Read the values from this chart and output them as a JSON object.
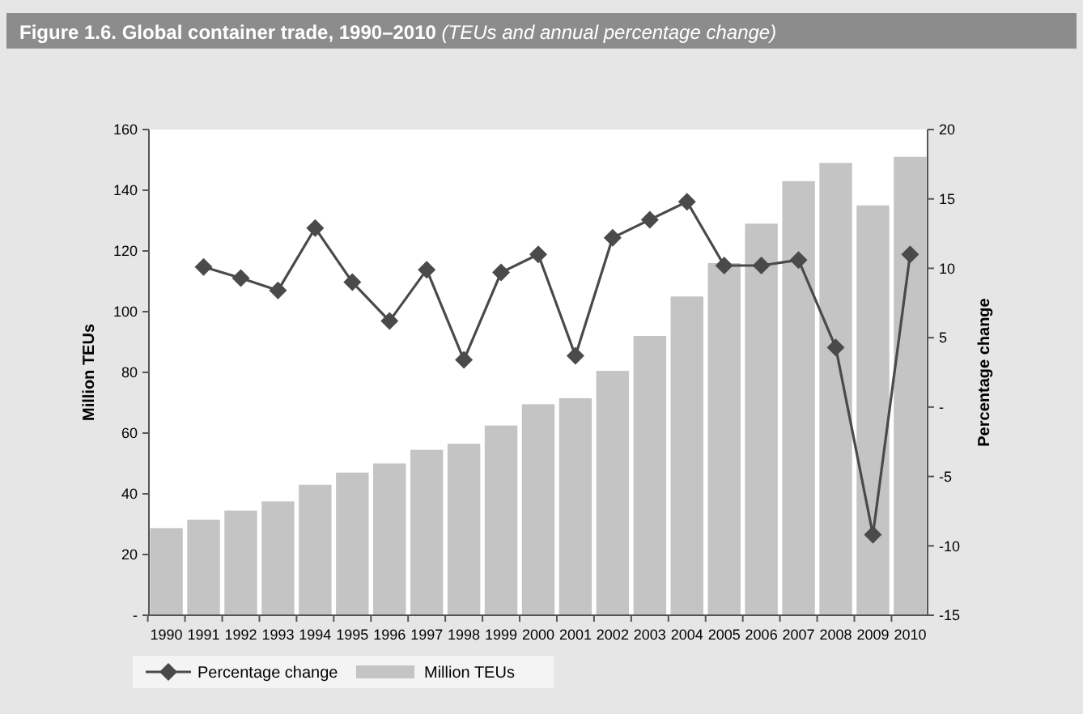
{
  "chart_data": {
    "type": "bar",
    "title": "Figure 1.6. Global container trade, 1990–2010",
    "subtitle": "(TEUs and annual percentage change)",
    "ylabel": "Million TEUs",
    "y2label": "Percentage change",
    "categories": [
      "1990",
      "1991",
      "1992",
      "1993",
      "1994",
      "1995",
      "1996",
      "1997",
      "1998",
      "1999",
      "2000",
      "2001",
      "2002",
      "2003",
      "2004",
      "2005",
      "2006",
      "2007",
      "2008",
      "2009",
      "2010"
    ],
    "series": [
      {
        "name": "Percentage change",
        "type": "line",
        "axis": "y2",
        "color": "#4a4a4a",
        "marker": "diamond",
        "values": [
          null,
          10.1,
          9.3,
          8.4,
          12.9,
          9.0,
          6.2,
          9.9,
          3.4,
          9.7,
          11.0,
          3.7,
          12.2,
          13.5,
          14.8,
          10.2,
          10.2,
          10.6,
          4.3,
          -9.2,
          11.0
        ]
      },
      {
        "name": "Million TEUs",
        "color": "#c4c4c4",
        "values": [
          28.7,
          31.5,
          34.5,
          37.5,
          43,
          47,
          50,
          54.5,
          56.5,
          62.5,
          69.5,
          71.5,
          80.5,
          92,
          105,
          116,
          129,
          143,
          149,
          135,
          151
        ]
      }
    ],
    "ylim": [
      0,
      160
    ],
    "yticks": [
      {
        "value": 0,
        "label": "-"
      },
      20,
      40,
      60,
      80,
      100,
      120,
      140,
      160
    ],
    "y2lim": [
      -15,
      20
    ],
    "y2ticks": [
      -15,
      -10,
      -5,
      {
        "value": 0,
        "label": "-"
      },
      5,
      10,
      15,
      20
    ],
    "legend": "bottom",
    "grid": false
  }
}
